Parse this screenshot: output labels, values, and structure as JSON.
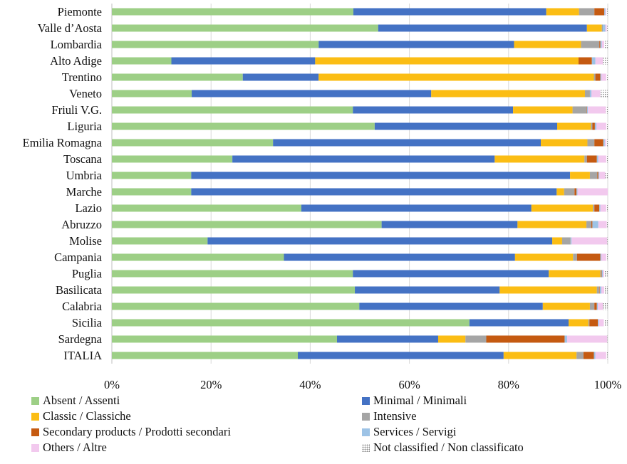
{
  "chart_data": {
    "type": "bar",
    "orientation": "horizontal",
    "stacked": "percent",
    "categories": [
      "Piemonte",
      "Valle d’Aosta",
      "Lombardia",
      "Alto Adige",
      "Trentino",
      "Veneto",
      "Friuli V.G.",
      "Liguria",
      "Emilia Romagna",
      "Toscana",
      "Umbria",
      "Marche",
      "Lazio",
      "Abruzzo",
      "Molise",
      "Campania",
      "Puglia",
      "Basilicata",
      "Calabria",
      "Sicilia",
      "Sardegna",
      "ITALIA"
    ],
    "xlim": [
      0,
      100
    ],
    "x_ticks": [
      "0%",
      "20%",
      "40%",
      "60%",
      "80%",
      "100%"
    ],
    "grid": "vertical",
    "legend_position": "bottom",
    "series": [
      {
        "name": "Absent / Assenti",
        "color": "#9dcf86",
        "pattern": "solid",
        "values": [
          48.7,
          53.7,
          41.7,
          12.0,
          26.4,
          16.1,
          48.6,
          53.0,
          32.5,
          24.3,
          16.0,
          16.0,
          38.2,
          54.4,
          19.3,
          34.7,
          48.6,
          49.0,
          49.9,
          72.1,
          45.4,
          37.5
        ]
      },
      {
        "name": "Minimal / Minimali",
        "color": "#4472c4",
        "pattern": "solid",
        "values": [
          38.9,
          42.1,
          39.4,
          29.0,
          15.3,
          48.3,
          32.3,
          36.8,
          54.0,
          52.9,
          76.4,
          73.7,
          46.4,
          27.4,
          69.5,
          46.6,
          39.5,
          29.2,
          37.0,
          20.0,
          20.4,
          41.5
        ]
      },
      {
        "name": "Classic / Classiche",
        "color": "#fbbd14",
        "pattern": "solid",
        "values": [
          6.6,
          3.0,
          13.5,
          53.1,
          55.5,
          31.0,
          12.0,
          6.8,
          9.4,
          18.1,
          4.0,
          1.5,
          12.4,
          13.9,
          2.0,
          11.7,
          10.4,
          19.6,
          9.5,
          4.0,
          5.5,
          14.7
        ]
      },
      {
        "name": "Intensive",
        "color": "#a5a5a5",
        "pattern": "solid",
        "values": [
          3.1,
          0.2,
          3.7,
          0.0,
          0.3,
          1.0,
          2.8,
          0.3,
          1.4,
          0.5,
          1.5,
          2.1,
          0.3,
          1.0,
          1.7,
          0.8,
          0.2,
          0.5,
          0.9,
          0.2,
          4.2,
          1.4
        ]
      },
      {
        "name": "Secondary products / Prodotti secondari",
        "color": "#c55a11",
        "pattern": "solid",
        "values": [
          2.0,
          0.0,
          0.2,
          2.7,
          1.0,
          0.0,
          0.1,
          0.5,
          1.8,
          2.0,
          0.2,
          0.4,
          1.0,
          0.2,
          0.0,
          4.7,
          0.1,
          0.1,
          0.5,
          1.7,
          15.8,
          2.1
        ]
      },
      {
        "name": "Services / Servigi",
        "color": "#9dc3e6",
        "pattern": "solid",
        "values": [
          0.2,
          0.5,
          0.3,
          0.7,
          0.2,
          0.3,
          0.2,
          0.3,
          0.3,
          0.3,
          0.2,
          0.2,
          0.2,
          1.2,
          0.2,
          0.2,
          0.2,
          0.3,
          0.2,
          0.2,
          0.5,
          0.3
        ]
      },
      {
        "name": "Others / Altre",
        "color": "#f2c9ee",
        "pattern": "solid",
        "values": [
          0.2,
          0.3,
          0.5,
          1.5,
          1.0,
          1.8,
          3.6,
          2.0,
          0.3,
          1.6,
          1.2,
          6.1,
          1.2,
          1.7,
          7.2,
          1.0,
          0.3,
          0.6,
          1.0,
          1.0,
          8.1,
          2.2
        ]
      },
      {
        "name": "Not classified / Non classificato",
        "color": "#b4b4b4",
        "pattern": "dots",
        "values": [
          0.3,
          0.2,
          0.7,
          1.0,
          0.3,
          1.5,
          0.4,
          0.3,
          0.3,
          0.3,
          0.5,
          0.0,
          0.3,
          0.2,
          0.1,
          0.3,
          0.7,
          0.7,
          1.0,
          0.8,
          0.1,
          0.3
        ]
      }
    ]
  }
}
